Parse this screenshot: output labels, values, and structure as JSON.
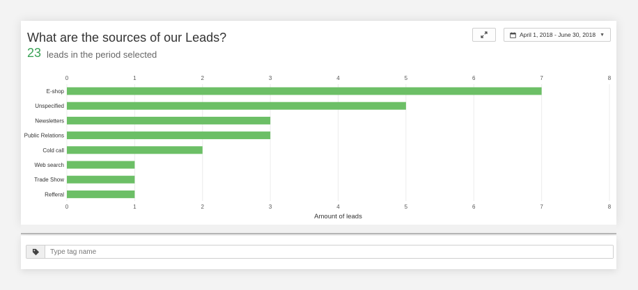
{
  "widget": {
    "title": "What are the sources of our Leads?",
    "lead_count": "23",
    "lead_count_label": "leads in the period selected",
    "date_range": "April 1, 2018 - June 30, 2018"
  },
  "tag_input": {
    "placeholder": "Type tag name",
    "value": ""
  },
  "icons": {
    "expand": "expand-icon",
    "calendar": "calendar-icon",
    "dropdown": "caret-down-icon",
    "tag": "tag-icon"
  },
  "colors": {
    "bar": "#6cbf66",
    "accent": "#3aa356"
  },
  "chart_data": {
    "type": "bar",
    "orientation": "horizontal",
    "categories": [
      "E-shop",
      "Unspecified",
      "Newsletters",
      "Public Relations",
      "Cold call",
      "Web search",
      "Trade Show",
      "Refferal"
    ],
    "values": [
      7,
      5,
      3,
      3,
      2,
      1,
      1,
      1
    ],
    "xlabel": "Amount of leads",
    "xlim": [
      0,
      8
    ],
    "ticks": [
      0,
      1,
      2,
      3,
      4,
      5,
      6,
      7,
      8
    ],
    "grid": true
  }
}
